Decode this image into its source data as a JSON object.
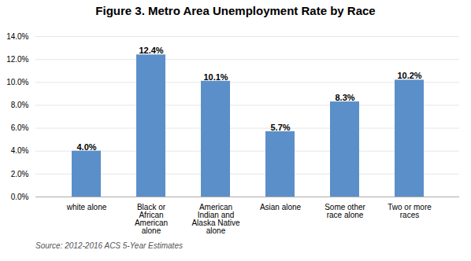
{
  "chart_data": {
    "type": "bar",
    "title": "Figure 3. Metro Area Unemployment Rate by Race",
    "categories": [
      "white alone",
      "Black or\nAfrican\nAmerican\nalone",
      "American\nIndian and\nAlaska Native\nalone",
      "Asian alone",
      "Some other\nrace alone",
      "Two or more\nraces"
    ],
    "values": [
      4.0,
      12.4,
      10.1,
      5.7,
      8.3,
      10.2
    ],
    "value_labels": [
      "4.0%",
      "12.4%",
      "10.1%",
      "5.7%",
      "8.3%",
      "10.2%"
    ],
    "data_labels": true,
    "color": "#5b8fc9",
    "ylim": [
      0,
      14.0
    ],
    "yticks": [
      {
        "value": 0.0,
        "label": "0.0%"
      },
      {
        "value": 2.0,
        "label": "2.0%"
      },
      {
        "value": 4.0,
        "label": "4.0%"
      },
      {
        "value": 6.0,
        "label": "6.0%"
      },
      {
        "value": 8.0,
        "label": "8.0%"
      },
      {
        "value": 10.0,
        "label": "10.0%"
      },
      {
        "value": 12.0,
        "label": "12.0%"
      },
      {
        "value": 14.0,
        "label": "14.0%"
      }
    ],
    "grid": true,
    "caption": "Source: 2012-2016 ACS 5-Year Estimates"
  }
}
